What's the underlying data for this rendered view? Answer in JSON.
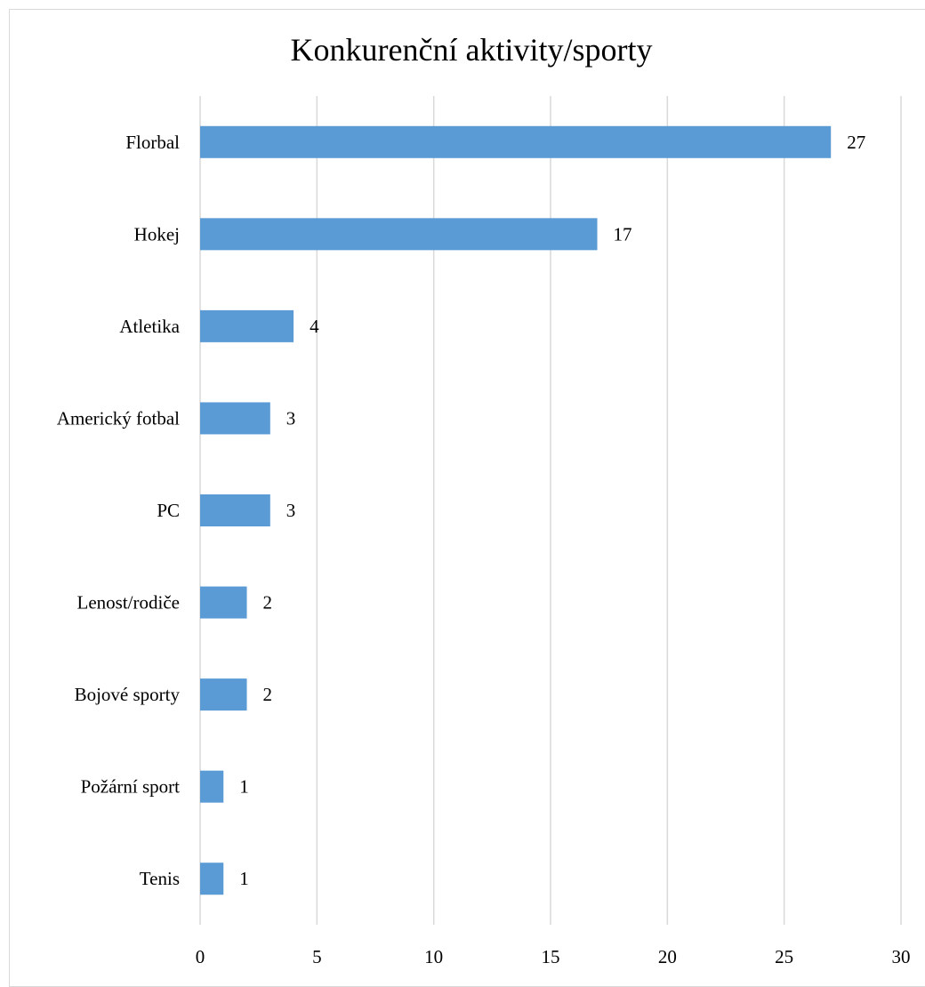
{
  "chart_data": {
    "type": "bar",
    "orientation": "horizontal",
    "title": "Konkurenční aktivity/sporty",
    "xlabel": "",
    "ylabel": "",
    "categories": [
      "Florbal",
      "Hokej",
      "Atletika",
      "Americký fotbal",
      "PC",
      "Lenost/rodiče",
      "Bojové sporty",
      "Požární sport",
      "Tenis"
    ],
    "values": [
      27,
      17,
      4,
      3,
      3,
      2,
      2,
      1,
      1
    ],
    "xlim": [
      0,
      30
    ],
    "xticks": [
      0,
      5,
      10,
      15,
      20,
      25,
      30
    ],
    "grid": true,
    "legend": "none",
    "data_labels": true,
    "bar_color": "#5b9bd5",
    "grid_color": "#d9d9d9"
  }
}
